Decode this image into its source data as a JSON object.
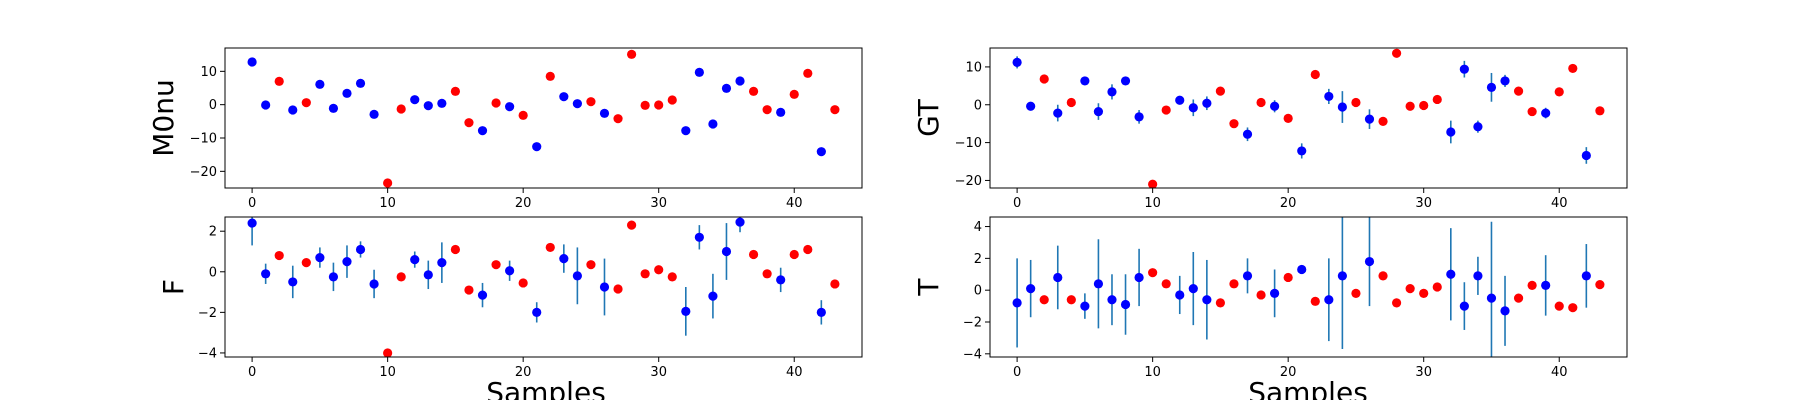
{
  "figure": {
    "xlabel": "Samples"
  },
  "colors": {
    "blue": "#0000ff",
    "red": "#ff0000",
    "errorbar": "#1f77b4"
  },
  "chart_data": [
    {
      "type": "scatter",
      "ylabel": "M0nu",
      "xlim": [
        -2,
        45
      ],
      "ylim": [
        -25,
        17
      ],
      "xticks": [
        0,
        10,
        20,
        30,
        40
      ],
      "yticks": [
        -20,
        -10,
        0,
        10
      ],
      "grid": false,
      "series": [
        {
          "color": "blue",
          "points": [
            [
              0,
              12.8,
              0.5
            ],
            [
              1,
              -0.1,
              0
            ],
            [
              3,
              -1.6,
              0
            ],
            [
              5,
              6.1,
              0
            ],
            [
              6,
              -1.1,
              0
            ],
            [
              7,
              3.4,
              0
            ],
            [
              8,
              6.4,
              0
            ],
            [
              9,
              -2.9,
              0
            ],
            [
              12,
              1.5,
              0
            ],
            [
              13,
              -0.3,
              0
            ],
            [
              14,
              0.4,
              0
            ],
            [
              17,
              -7.8,
              0
            ],
            [
              19,
              -0.6,
              0
            ],
            [
              21,
              -12.6,
              0
            ],
            [
              23,
              2.4,
              0
            ],
            [
              24,
              0.3,
              0
            ],
            [
              26,
              -2.6,
              0
            ],
            [
              32,
              -7.8,
              0
            ],
            [
              33,
              9.7,
              0
            ],
            [
              34,
              -5.8,
              0
            ],
            [
              35,
              4.9,
              0
            ],
            [
              36,
              7.1,
              0
            ],
            [
              39,
              -2.3,
              0
            ],
            [
              42,
              -14.1,
              0
            ]
          ]
        },
        {
          "color": "red",
          "points": [
            [
              2,
              7.0,
              0
            ],
            [
              4,
              0.6,
              0
            ],
            [
              10,
              -23.5,
              0
            ],
            [
              11,
              -1.3,
              0
            ],
            [
              15,
              4.0,
              0
            ],
            [
              16,
              -5.4,
              0
            ],
            [
              18,
              0.5,
              0
            ],
            [
              20,
              -3.2,
              0
            ],
            [
              22,
              8.5,
              0
            ],
            [
              25,
              0.9,
              0
            ],
            [
              27,
              -4.2,
              0
            ],
            [
              28,
              15.1,
              0
            ],
            [
              29,
              -0.2,
              0
            ],
            [
              30,
              -0.1,
              0
            ],
            [
              31,
              1.4,
              0
            ],
            [
              37,
              4.0,
              0
            ],
            [
              38,
              -1.5,
              0
            ],
            [
              40,
              3.1,
              0
            ],
            [
              41,
              9.4,
              0
            ],
            [
              43,
              -1.5,
              0
            ]
          ]
        }
      ]
    },
    {
      "type": "scatter",
      "ylabel": "GT",
      "xlim": [
        -2,
        45
      ],
      "ylim": [
        -22,
        15
      ],
      "xticks": [
        0,
        10,
        20,
        30,
        40
      ],
      "yticks": [
        -20,
        -10,
        0,
        10
      ],
      "grid": false,
      "series": [
        {
          "color": "blue",
          "points": [
            [
              0,
              11.2,
              1.6
            ],
            [
              1,
              -0.4,
              1.0
            ],
            [
              3,
              -2.2,
              2.2
            ],
            [
              5,
              6.3,
              0.5
            ],
            [
              6,
              -1.8,
              2.2
            ],
            [
              7,
              3.4,
              2.0
            ],
            [
              8,
              6.3,
              0.8
            ],
            [
              9,
              -3.2,
              1.8
            ],
            [
              12,
              1.2,
              0.8
            ],
            [
              13,
              -0.8,
              2.2
            ],
            [
              14,
              0.4,
              1.8
            ],
            [
              17,
              -7.8,
              1.8
            ],
            [
              19,
              -0.4,
              1.6
            ],
            [
              21,
              -12.2,
              2.0
            ],
            [
              23,
              2.2,
              2.0
            ],
            [
              24,
              -0.6,
              4.2
            ],
            [
              26,
              -3.8,
              2.6
            ],
            [
              32,
              -7.2,
              3.0
            ],
            [
              33,
              9.4,
              2.2
            ],
            [
              34,
              -5.8,
              1.6
            ],
            [
              35,
              4.6,
              3.8
            ],
            [
              36,
              6.3,
              1.6
            ],
            [
              39,
              -2.2,
              1.4
            ],
            [
              42,
              -13.4,
              2.2
            ]
          ]
        },
        {
          "color": "red",
          "points": [
            [
              2,
              6.8,
              0
            ],
            [
              4,
              0.6,
              0
            ],
            [
              10,
              -21.0,
              0
            ],
            [
              11,
              -1.4,
              0
            ],
            [
              15,
              3.6,
              0
            ],
            [
              16,
              -5.0,
              0
            ],
            [
              18,
              0.6,
              0
            ],
            [
              20,
              -3.6,
              0
            ],
            [
              22,
              8.0,
              0
            ],
            [
              25,
              0.6,
              0
            ],
            [
              27,
              -4.4,
              0
            ],
            [
              28,
              13.6,
              0
            ],
            [
              29,
              -0.4,
              0
            ],
            [
              30,
              -0.2,
              0
            ],
            [
              31,
              1.4,
              0
            ],
            [
              37,
              3.6,
              0
            ],
            [
              38,
              -1.8,
              0
            ],
            [
              40,
              3.4,
              0
            ],
            [
              41,
              9.6,
              0
            ],
            [
              43,
              -1.6,
              0
            ]
          ]
        }
      ]
    },
    {
      "type": "scatter",
      "ylabel": "F",
      "xlim": [
        -2,
        45
      ],
      "ylim": [
        -4.2,
        2.7
      ],
      "xticks": [
        0,
        10,
        20,
        30,
        40
      ],
      "yticks": [
        -4,
        -2,
        0,
        2
      ],
      "grid": false,
      "series": [
        {
          "color": "blue",
          "points": [
            [
              0,
              2.4,
              1.1
            ],
            [
              1,
              -0.1,
              0.5
            ],
            [
              3,
              -0.5,
              0.8
            ],
            [
              5,
              0.7,
              0.5
            ],
            [
              6,
              -0.25,
              0.7
            ],
            [
              7,
              0.5,
              0.8
            ],
            [
              8,
              1.1,
              0.4
            ],
            [
              9,
              -0.6,
              0.7
            ],
            [
              12,
              0.6,
              0.4
            ],
            [
              13,
              -0.15,
              0.7
            ],
            [
              14,
              0.45,
              1.0
            ],
            [
              17,
              -1.15,
              0.6
            ],
            [
              19,
              0.05,
              0.5
            ],
            [
              21,
              -2.0,
              0.5
            ],
            [
              23,
              0.65,
              0.7
            ],
            [
              24,
              -0.2,
              1.4
            ],
            [
              26,
              -0.75,
              1.4
            ],
            [
              32,
              -1.95,
              1.2
            ],
            [
              33,
              1.7,
              0.6
            ],
            [
              34,
              -1.2,
              1.1
            ],
            [
              35,
              1.0,
              1.4
            ],
            [
              36,
              2.45,
              0.5
            ],
            [
              39,
              -0.4,
              0.6
            ],
            [
              42,
              -2.0,
              0.6
            ]
          ]
        },
        {
          "color": "red",
          "points": [
            [
              2,
              0.8,
              0
            ],
            [
              4,
              0.45,
              0
            ],
            [
              10,
              -4.0,
              0
            ],
            [
              11,
              -0.25,
              0
            ],
            [
              15,
              1.1,
              0
            ],
            [
              16,
              -0.9,
              0
            ],
            [
              18,
              0.35,
              0
            ],
            [
              20,
              -0.55,
              0
            ],
            [
              22,
              1.2,
              0
            ],
            [
              25,
              0.35,
              0
            ],
            [
              27,
              -0.85,
              0
            ],
            [
              28,
              2.3,
              0
            ],
            [
              29,
              -0.1,
              0
            ],
            [
              30,
              0.1,
              0
            ],
            [
              31,
              -0.25,
              0
            ],
            [
              37,
              0.85,
              0
            ],
            [
              38,
              -0.1,
              0
            ],
            [
              40,
              0.85,
              0
            ],
            [
              41,
              1.1,
              0
            ],
            [
              43,
              -0.6,
              0
            ]
          ]
        }
      ]
    },
    {
      "type": "scatter",
      "ylabel": "T",
      "xlim": [
        -2,
        45
      ],
      "ylim": [
        -4.2,
        4.6
      ],
      "xticks": [
        0,
        10,
        20,
        30,
        40
      ],
      "yticks": [
        -4,
        -2,
        0,
        2,
        4
      ],
      "grid": false,
      "series": [
        {
          "color": "blue",
          "points": [
            [
              0,
              -0.8,
              2.8
            ],
            [
              1,
              0.1,
              1.8
            ],
            [
              3,
              0.8,
              2.0
            ],
            [
              5,
              -1.0,
              0.8
            ],
            [
              6,
              0.4,
              2.8
            ],
            [
              7,
              -0.6,
              1.6
            ],
            [
              8,
              -0.9,
              1.9
            ],
            [
              9,
              0.8,
              1.8
            ],
            [
              12,
              -0.3,
              1.2
            ],
            [
              13,
              0.1,
              2.3
            ],
            [
              14,
              -0.6,
              2.5
            ],
            [
              17,
              0.9,
              1.1
            ],
            [
              19,
              -0.2,
              1.5
            ],
            [
              21,
              1.3,
              0
            ],
            [
              23,
              -0.6,
              2.6
            ],
            [
              24,
              0.9,
              4.6
            ],
            [
              26,
              1.8,
              2.8
            ],
            [
              32,
              1.0,
              2.9
            ],
            [
              33,
              -1.0,
              1.5
            ],
            [
              34,
              0.9,
              1.2
            ],
            [
              35,
              -0.5,
              4.8
            ],
            [
              36,
              -1.3,
              2.2
            ],
            [
              39,
              0.3,
              1.9
            ],
            [
              42,
              0.9,
              2.0
            ]
          ]
        },
        {
          "color": "red",
          "points": [
            [
              2,
              -0.6,
              0
            ],
            [
              4,
              -0.6,
              0
            ],
            [
              10,
              1.1,
              0
            ],
            [
              11,
              0.4,
              0
            ],
            [
              15,
              -0.8,
              0
            ],
            [
              16,
              0.4,
              0
            ],
            [
              18,
              -0.3,
              0
            ],
            [
              20,
              0.8,
              0
            ],
            [
              22,
              -0.7,
              0
            ],
            [
              25,
              -0.2,
              0
            ],
            [
              27,
              0.9,
              0
            ],
            [
              28,
              -0.8,
              0
            ],
            [
              29,
              0.1,
              0
            ],
            [
              30,
              -0.2,
              0
            ],
            [
              31,
              0.2,
              0
            ],
            [
              37,
              -0.5,
              0
            ],
            [
              38,
              0.3,
              0
            ],
            [
              40,
              -1.0,
              0
            ],
            [
              41,
              -1.1,
              0
            ],
            [
              43,
              0.35,
              0
            ]
          ]
        }
      ]
    }
  ]
}
